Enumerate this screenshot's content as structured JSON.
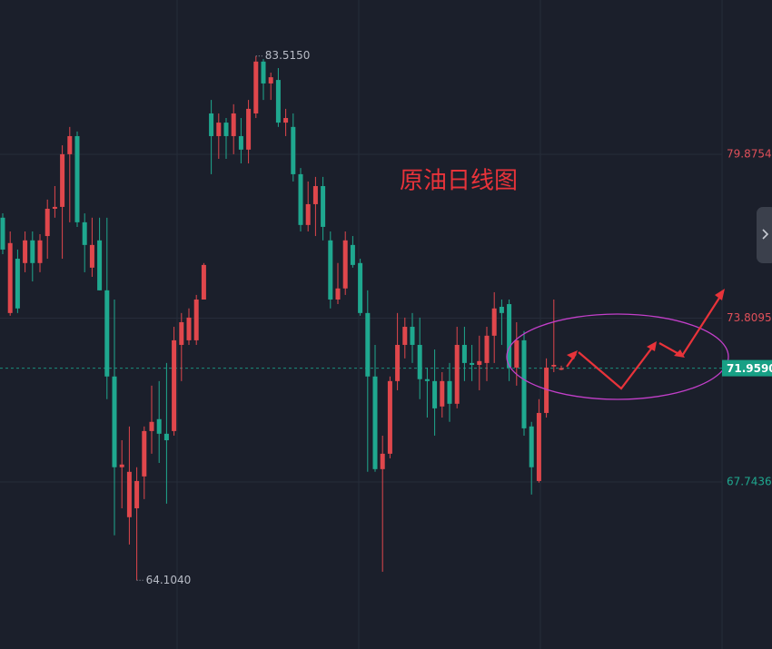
{
  "chart_data": {
    "type": "candlestick",
    "title": "原油日线图",
    "ylim": [
      61.56,
      85.59
    ],
    "yticks": [
      67.7436,
      73.8095,
      79.8754
    ],
    "up_color": "#e0474c",
    "down_color": "#1fa88f",
    "grid": true,
    "open": [
      77.53,
      74.0,
      76.01,
      75.85,
      76.69,
      75.85,
      76.85,
      77.86,
      77.93,
      79.88,
      80.55,
      77.36,
      75.68,
      76.69,
      74.84,
      71.65,
      68.29,
      66.44,
      66.77,
      67.95,
      69.63,
      70.07,
      69.53,
      69.63,
      72.82,
      72.99,
      72.99,
      74.5,
      81.39,
      80.55,
      81.05,
      80.55,
      80.55,
      80.05,
      81.39,
      83.31,
      82.5,
      82.63,
      81.05,
      80.89,
      79.14,
      77.26,
      78.03,
      78.7,
      76.69,
      74.5,
      74.91,
      76.52,
      75.85,
      74.0,
      71.65,
      68.22,
      68.79,
      71.48,
      72.82,
      73.49,
      72.82,
      71.55,
      71.48,
      70.54,
      71.48,
      70.64,
      72.82,
      72.15,
      72.08,
      72.15,
      73.16,
      74.23,
      74.33,
      71.98,
      72.99,
      69.8,
      67.78,
      70.3,
      72.02,
      71.9
    ],
    "high": [
      77.69,
      77.02,
      76.35,
      77.02,
      77.02,
      76.92,
      78.2,
      78.7,
      80.21,
      80.89,
      80.72,
      77.69,
      77.53,
      77.53,
      77.53,
      74.5,
      69.29,
      69.8,
      68.29,
      69.8,
      71.31,
      71.48,
      72.15,
      73.49,
      74.0,
      74.17,
      74.67,
      75.85,
      81.89,
      81.39,
      81.22,
      81.73,
      81.22,
      81.89,
      83.515,
      83.4,
      82.9,
      83.07,
      81.56,
      81.39,
      79.37,
      78.87,
      79.04,
      79.04,
      77.02,
      75.85,
      77.02,
      76.85,
      76.01,
      74.84,
      72.82,
      69.46,
      71.65,
      74.0,
      73.83,
      74.0,
      73.83,
      71.98,
      72.65,
      71.81,
      72.15,
      73.49,
      73.49,
      72.82,
      73.16,
      73.49,
      74.77,
      74.5,
      74.5,
      73.66,
      73.33,
      69.97,
      70.81,
      72.32,
      74.5,
      72.05
    ],
    "low": [
      76.18,
      73.9,
      74.0,
      75.51,
      75.17,
      75.51,
      76.01,
      77.53,
      76.01,
      77.36,
      77.19,
      75.51,
      75.34,
      74.84,
      70.81,
      65.77,
      66.77,
      65.43,
      64.104,
      67.11,
      68.79,
      68.45,
      66.94,
      69.46,
      71.48,
      72.82,
      72.82,
      74.5,
      79.14,
      79.71,
      79.71,
      79.88,
      79.54,
      79.54,
      81.22,
      81.89,
      81.89,
      80.89,
      80.55,
      78.87,
      77.02,
      77.02,
      76.85,
      76.69,
      74.17,
      74.33,
      74.67,
      75.68,
      73.9,
      68.12,
      68.12,
      64.42,
      68.62,
      71.14,
      72.32,
      72.15,
      70.81,
      70.13,
      69.46,
      70.13,
      69.97,
      70.47,
      71.48,
      71.48,
      71.14,
      71.48,
      72.15,
      72.82,
      71.48,
      71.31,
      69.46,
      67.28,
      67.72,
      70.13,
      71.81,
      71.88
    ],
    "close": [
      76.35,
      76.59,
      74.17,
      76.69,
      75.85,
      76.69,
      77.86,
      77.93,
      79.88,
      80.55,
      77.36,
      76.52,
      76.52,
      74.84,
      71.65,
      68.29,
      68.39,
      68.12,
      67.78,
      69.63,
      69.97,
      69.53,
      69.29,
      72.99,
      73.66,
      73.83,
      74.5,
      75.78,
      80.55,
      81.05,
      80.55,
      81.39,
      80.05,
      81.56,
      83.31,
      82.5,
      82.73,
      81.05,
      81.22,
      79.14,
      77.26,
      78.03,
      78.7,
      77.19,
      74.5,
      74.91,
      76.69,
      75.78,
      74.0,
      71.65,
      68.22,
      68.79,
      71.48,
      72.82,
      73.49,
      72.82,
      71.55,
      71.48,
      70.47,
      71.48,
      70.64,
      72.82,
      72.15,
      72.08,
      72.22,
      73.16,
      74.17,
      74.0,
      71.98,
      72.99,
      69.73,
      68.29,
      70.3,
      71.98,
      72.08,
      71.959
    ],
    "high_label": {
      "value": 83.515,
      "label": "83.5150"
    },
    "low_label": {
      "value": 64.104,
      "label": "64.1040"
    },
    "last_price": {
      "value": 71.959,
      "label": "71.9590"
    }
  }
}
